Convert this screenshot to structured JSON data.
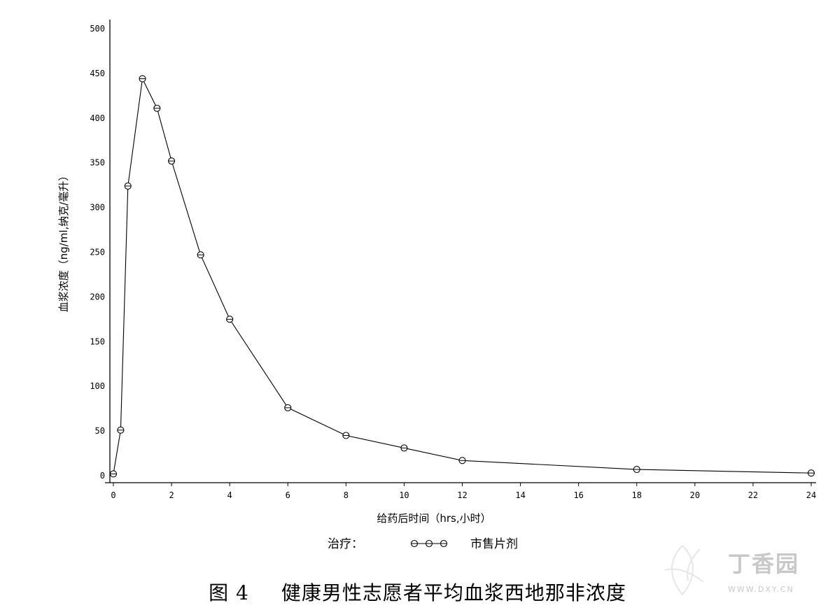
{
  "chart_data": {
    "type": "line",
    "xlabel": "给药后时间（hrs,小时）",
    "ylabel": "血浆浓度（ng/ml,纳克/毫升）",
    "xlim": [
      0,
      24
    ],
    "ylim": [
      0,
      500
    ],
    "xticks": [
      0,
      2,
      4,
      6,
      8,
      10,
      12,
      14,
      16,
      18,
      20,
      22,
      24
    ],
    "yticks": [
      0,
      50,
      100,
      150,
      200,
      250,
      300,
      350,
      400,
      450,
      500
    ],
    "grid": false,
    "legend": {
      "placement": "bottom",
      "prefix": "治疗：",
      "marker": "circle-line"
    },
    "series": [
      {
        "name": "市售片剂",
        "x": [
          0,
          0.25,
          0.5,
          1,
          1.5,
          2,
          3,
          4,
          6,
          8,
          10,
          12,
          18,
          24
        ],
        "y": [
          2,
          51,
          324,
          444,
          411,
          352,
          247,
          175,
          76,
          45,
          31,
          17,
          7,
          3
        ]
      }
    ]
  },
  "caption": {
    "figure_number": "图 4",
    "text": "健康男性志愿者平均血浆西地那非浓度"
  },
  "watermark": {
    "brand": "丁香园",
    "url": "WWW.DXY.CN"
  }
}
